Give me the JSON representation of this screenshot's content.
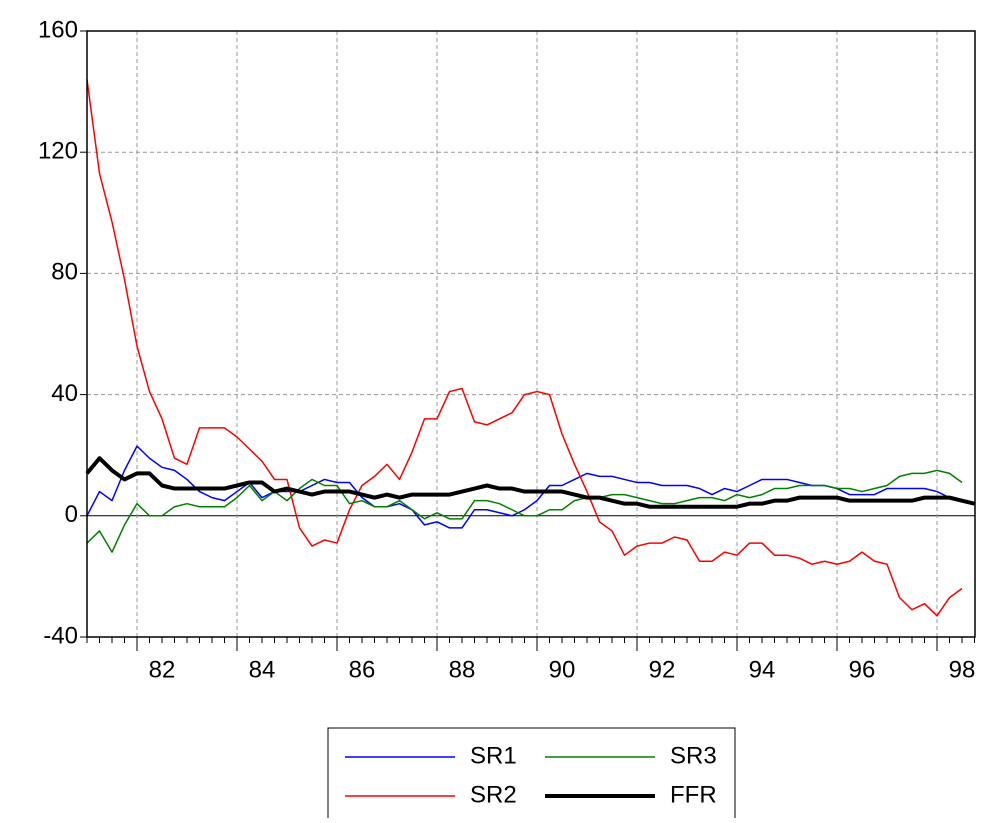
{
  "chart_data": {
    "type": "line",
    "categories": [
      null,
      null,
      null,
      null,
      null,
      null,
      "82",
      null,
      null,
      null,
      null,
      null,
      null,
      null,
      "84",
      null,
      null,
      null,
      null,
      null,
      null,
      null,
      "86",
      null,
      null,
      null,
      null,
      null,
      null,
      null,
      "88",
      null,
      null,
      null,
      null,
      null,
      null,
      null,
      "90",
      null,
      null,
      null,
      null,
      null,
      null,
      null,
      "92",
      null,
      null,
      null,
      null,
      null,
      null,
      null,
      "94",
      null,
      null,
      null,
      null,
      null,
      null,
      null,
      "96",
      null,
      null,
      null,
      null,
      null,
      null,
      null,
      "98",
      null
    ],
    "ylim": [
      -40,
      160
    ],
    "yticks": [
      -40,
      0,
      40,
      80,
      120,
      160
    ],
    "grid": true,
    "legend": "bottom",
    "series": [
      {
        "name": "SR1",
        "color": "#0000ff",
        "line_width": 1.5,
        "values": [
          0,
          8,
          5,
          15,
          23,
          19,
          16,
          15,
          12,
          8,
          6,
          5,
          8,
          11,
          6,
          8,
          8,
          8,
          10,
          12,
          11,
          11,
          6,
          3,
          3,
          4,
          2,
          -3,
          -2,
          -4,
          -4,
          2,
          2,
          1,
          0,
          2,
          5,
          10,
          10,
          12,
          14,
          13,
          13,
          12,
          11,
          11,
          10,
          10,
          10,
          9,
          7,
          9,
          8,
          10,
          12,
          12,
          12,
          11,
          10,
          10,
          9,
          7,
          7,
          7,
          9,
          9,
          9,
          9,
          8,
          6,
          5,
          null
        ]
      },
      {
        "name": "SR2",
        "color": "#ff0000",
        "line_width": 1.5,
        "values": [
          144,
          113,
          97,
          78,
          56,
          41,
          32,
          19,
          17,
          29,
          29,
          29,
          26,
          22,
          18,
          12,
          12,
          -4,
          -10,
          -8,
          -9,
          2,
          10,
          13,
          17,
          12,
          21,
          32,
          32,
          41,
          42,
          31,
          30,
          32,
          34,
          40,
          41,
          40,
          27,
          17,
          8,
          -2,
          -5,
          -13,
          -10,
          -9,
          -9,
          -7,
          -8,
          -15,
          -15,
          -12,
          -13,
          -9,
          -9,
          -13,
          -13,
          -14,
          -16,
          -15,
          -16,
          -15,
          -12,
          -15,
          -16,
          -27,
          -31,
          -29,
          -33,
          -27,
          -24,
          null
        ]
      },
      {
        "name": "SR3",
        "color": "#008000",
        "line_width": 1.5,
        "values": [
          -9,
          -5,
          -12,
          -3,
          4,
          0,
          0,
          3,
          4,
          3,
          3,
          3,
          6,
          10,
          5,
          8,
          5,
          9,
          12,
          10,
          10,
          4,
          5,
          3,
          3,
          5,
          2,
          -1,
          1,
          -1,
          -1,
          5,
          5,
          4,
          2,
          0,
          0,
          2,
          2,
          5,
          6,
          6,
          7,
          7,
          6,
          5,
          4,
          4,
          5,
          6,
          6,
          5,
          7,
          6,
          7,
          9,
          9,
          10,
          10,
          10,
          9,
          9,
          8,
          9,
          10,
          13,
          14,
          14,
          15,
          14,
          11,
          null
        ]
      },
      {
        "name": "FFR",
        "color": "#000000",
        "line_width": 4,
        "values": [
          14,
          19,
          15,
          12,
          14,
          14,
          10,
          9,
          9,
          9,
          9,
          9,
          10,
          11,
          11,
          8,
          9,
          8,
          7,
          8,
          8,
          8,
          7,
          6,
          7,
          6,
          7,
          7,
          7,
          7,
          8,
          9,
          10,
          9,
          9,
          8,
          8,
          8,
          8,
          7,
          6,
          6,
          5,
          4,
          4,
          3,
          3,
          3,
          3,
          3,
          3,
          3,
          3,
          4,
          4,
          5,
          5,
          6,
          6,
          6,
          6,
          5,
          5,
          5,
          5,
          5,
          5,
          6,
          6,
          6,
          5,
          4
        ]
      }
    ]
  }
}
